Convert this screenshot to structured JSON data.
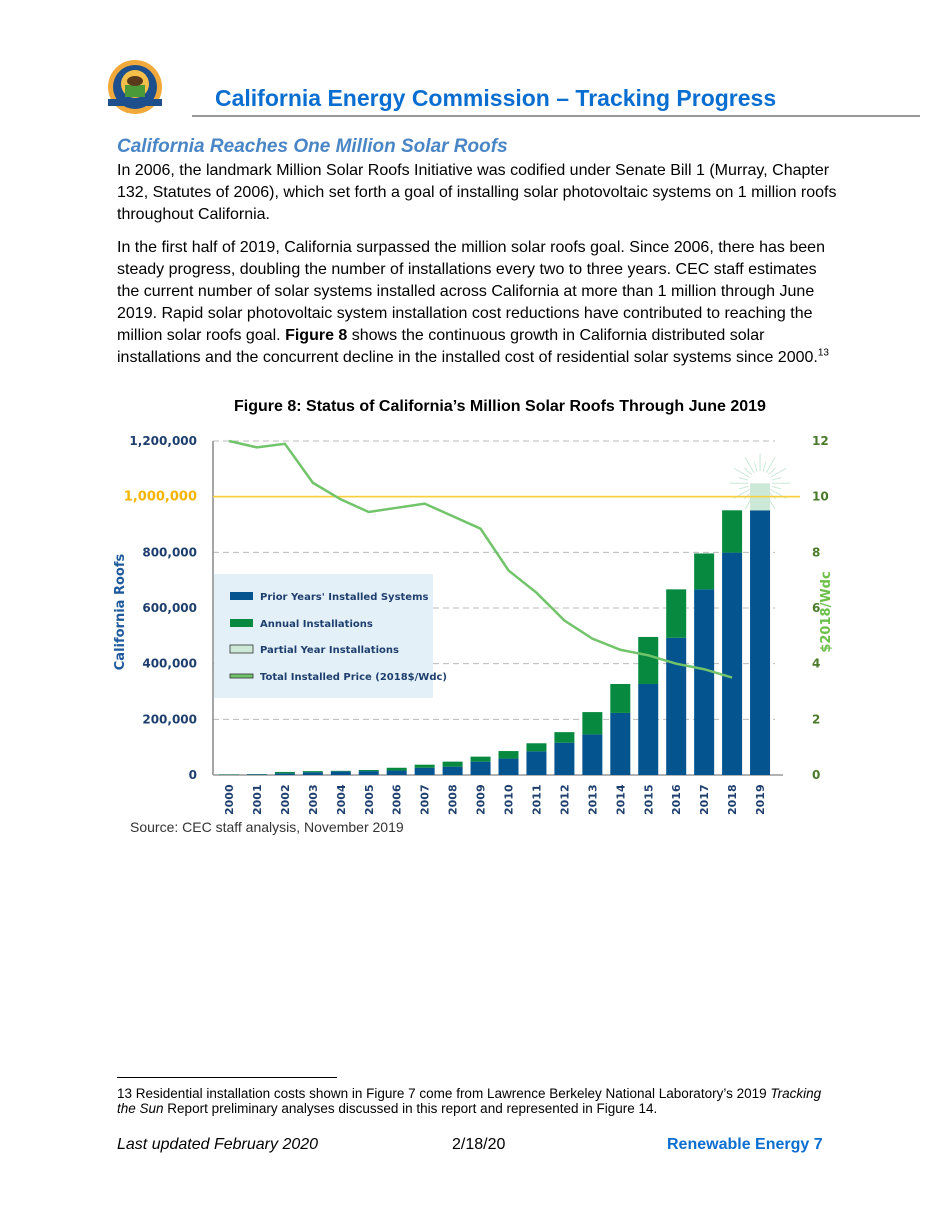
{
  "header": {
    "logo_text": "State of California Energy Commission",
    "title": "California Energy Commission – Tracking Progress"
  },
  "section": {
    "heading": "California Reaches One Million Solar Roofs",
    "paragraph1": "In 2006, the landmark Million Solar Roofs Initiative was codified under Senate Bill 1 (Murray, Chapter 132, Statutes of 2006), which set forth a goal of installing solar photovoltaic systems on 1 million roofs throughout California.",
    "paragraph2_a": "In the first half of 2019, California surpassed the million solar roofs goal. Since 2006, there has been steady progress, doubling the number of installations every two to three years. CEC staff estimates the current number of solar systems installed across California at more than 1 million through June 2019. Rapid solar photovoltaic system installation cost reductions have contributed to reaching the million solar roofs goal. ",
    "paragraph2_bold": "Figure 8",
    "paragraph2_b": " shows the continuous growth in California distributed solar installations and the concurrent decline in the installed cost of residential solar systems since 2000.",
    "footnote_ref": "13"
  },
  "figure": {
    "caption": "Figure 8: Status of California’s Million Solar Roofs Through June 2019",
    "source": "Source: CEC staff analysis, November 2019"
  },
  "chart_data": {
    "type": "bar",
    "stacked": true,
    "title": "Figure 8: Status of California’s Million Solar Roofs Through June 2019",
    "ylabel": "California Roofs",
    "y2label": "$2018/Wdc",
    "ylim": [
      0,
      1200000
    ],
    "y2lim": [
      0,
      12
    ],
    "yticks": [
      "0",
      "200,000",
      "400,000",
      "600,000",
      "800,000",
      "1,000,000",
      "1,200,000"
    ],
    "y2ticks": [
      "0",
      "2",
      "4",
      "6",
      "8",
      "10",
      "12"
    ],
    "goal_line": 1000000,
    "legend_placement": "center-left",
    "categories": [
      "2000",
      "2001",
      "2002",
      "2003",
      "2004",
      "2005",
      "2006",
      "2007",
      "2008",
      "2009",
      "2010",
      "2011",
      "2012",
      "2013",
      "2014",
      "2015",
      "2016",
      "2017",
      "2018",
      "2019"
    ],
    "series": [
      {
        "name": "Prior Years' Installed Systems",
        "color": "#04548f",
        "values": [
          1000,
          2000,
          6000,
          10000,
          13000,
          14000,
          16000,
          26000,
          30000,
          48000,
          59000,
          85000,
          116000,
          146000,
          223000,
          327000,
          493000,
          667000,
          799000,
          951000
        ]
      },
      {
        "name": "Annual Installations",
        "color": "#078a3f",
        "values": [
          1000,
          1000,
          5000,
          4000,
          2000,
          4000,
          10000,
          11000,
          18000,
          18000,
          27000,
          29000,
          38000,
          80000,
          104000,
          169000,
          174000,
          129000,
          152000,
          0
        ]
      },
      {
        "name": "Partial Year Installations",
        "color": "#cce8d6",
        "values": [
          0,
          0,
          0,
          0,
          0,
          0,
          0,
          0,
          0,
          0,
          0,
          0,
          0,
          0,
          0,
          0,
          0,
          0,
          0,
          97000
        ]
      },
      {
        "name": "Total Installed Price (2018$/Wdc)",
        "color": "#72c46b",
        "axis": "right",
        "type": "line",
        "values": [
          12.0,
          11.77,
          11.9,
          10.5,
          9.9,
          9.45,
          9.6,
          9.75,
          9.3,
          8.85,
          7.35,
          6.55,
          5.55,
          4.9,
          4.5,
          4.3,
          4.0,
          3.8,
          3.5,
          null
        ]
      }
    ]
  },
  "footnote": {
    "number": "13",
    "text_a": " Residential installation costs shown in Figure 7 come from Lawrence Berkeley National Laboratory’s 2019 ",
    "text_italic": "Tracking the Sun",
    "text_b": " Report preliminary analyses discussed in this report and represented in Figure 14."
  },
  "footer": {
    "last_updated": "Last updated February 2020",
    "date": "2/18/20",
    "page_label": "Renewable Energy 7"
  }
}
